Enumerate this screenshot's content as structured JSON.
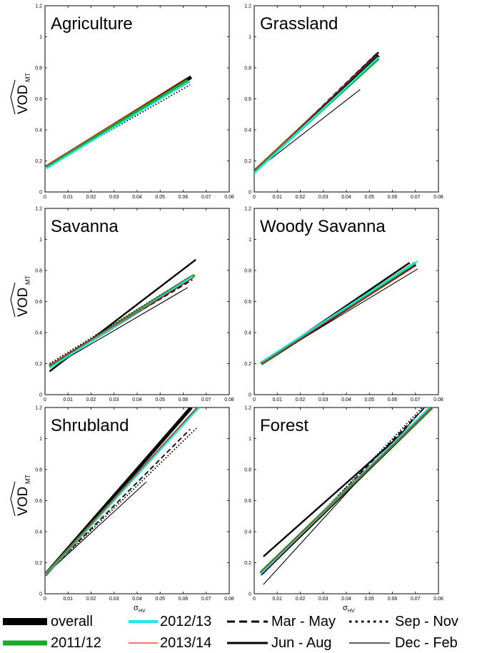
{
  "chart_data": [
    {
      "type": "line",
      "title": "Agriculture",
      "ylabel": "VOD",
      "ylabel_sub": "MT",
      "xlabel": "",
      "xlim": [
        0,
        0.08
      ],
      "ylim": [
        0,
        1.2
      ],
      "xticks": [
        "0",
        "0.01",
        "0.02",
        "0.03",
        "0.04",
        "0.05",
        "0.06",
        "0.07",
        "0.08"
      ],
      "yticks": [
        "0",
        "0.2",
        "0.4",
        "0.6",
        "0.8",
        "1",
        "1.2"
      ],
      "series": [
        {
          "name": "overall",
          "x": [
            0.0005,
            0.0635
          ],
          "y": [
            0.16,
            0.74
          ]
        },
        {
          "name": "2011/12",
          "x": [
            0.0005,
            0.062
          ],
          "y": [
            0.16,
            0.72
          ]
        },
        {
          "name": "2012/13",
          "x": [
            0.0005,
            0.0625
          ],
          "y": [
            0.15,
            0.71
          ]
        },
        {
          "name": "2013/14",
          "x": [
            0.0005,
            0.061
          ],
          "y": [
            0.17,
            0.73
          ]
        },
        {
          "name": "Mar - May",
          "x": [
            0.0005,
            0.062
          ],
          "y": [
            0.16,
            0.72
          ]
        },
        {
          "name": "Jun - Aug",
          "x": [
            0.0005,
            0.063
          ],
          "y": [
            0.16,
            0.73
          ]
        },
        {
          "name": "Sep - Nov",
          "x": [
            0.0005,
            0.063
          ],
          "y": [
            0.16,
            0.69
          ]
        },
        {
          "name": "Dec - Feb",
          "x": [
            0.0005,
            0.063
          ],
          "y": [
            0.16,
            0.71
          ]
        }
      ]
    },
    {
      "type": "line",
      "title": "Grassland",
      "ylabel": "",
      "ylabel_sub": "",
      "xlabel": "",
      "xlim": [
        0,
        0.08
      ],
      "ylim": [
        0,
        1.2
      ],
      "xticks": [
        "0",
        "0.01",
        "0.02",
        "0.03",
        "0.04",
        "0.05",
        "0.06",
        "0.07",
        "0.08"
      ],
      "yticks": [
        "0",
        "0.2",
        "0.4",
        "0.6",
        "0.8",
        "1",
        "1.2"
      ],
      "series": [
        {
          "name": "overall",
          "x": [
            0.0,
            0.054
          ],
          "y": [
            0.13,
            0.88
          ]
        },
        {
          "name": "2011/12",
          "x": [
            0.0,
            0.054
          ],
          "y": [
            0.13,
            0.86
          ]
        },
        {
          "name": "2012/13",
          "x": [
            0.0,
            0.054
          ],
          "y": [
            0.12,
            0.87
          ]
        },
        {
          "name": "2013/14",
          "x": [
            0.0,
            0.053
          ],
          "y": [
            0.14,
            0.88
          ]
        },
        {
          "name": "Mar - May",
          "x": [
            0.0,
            0.053
          ],
          "y": [
            0.13,
            0.89
          ]
        },
        {
          "name": "Jun - Aug",
          "x": [
            0.0,
            0.054
          ],
          "y": [
            0.12,
            0.9
          ]
        },
        {
          "name": "Sep - Nov",
          "x": [
            0.0,
            0.053
          ],
          "y": [
            0.13,
            0.87
          ]
        },
        {
          "name": "Dec - Feb",
          "x": [
            0.0,
            0.046
          ],
          "y": [
            0.13,
            0.66
          ]
        }
      ]
    },
    {
      "type": "line",
      "title": "Savanna",
      "ylabel": "VOD",
      "ylabel_sub": "MT",
      "xlabel": "",
      "xlim": [
        0,
        0.08
      ],
      "ylim": [
        0,
        1.2
      ],
      "xticks": [
        "0",
        "0.01",
        "0.02",
        "0.03",
        "0.04",
        "0.05",
        "0.06",
        "0.07",
        "0.08"
      ],
      "yticks": [
        "0",
        "0.2",
        "0.4",
        "0.6",
        "0.8",
        "1",
        "1.2"
      ],
      "series": [
        {
          "name": "overall",
          "x": [
            0.002,
            0.064
          ],
          "y": [
            0.18,
            0.76
          ]
        },
        {
          "name": "2011/12",
          "x": [
            0.002,
            0.065
          ],
          "y": [
            0.18,
            0.77
          ]
        },
        {
          "name": "2012/13",
          "x": [
            0.002,
            0.064
          ],
          "y": [
            0.17,
            0.76
          ]
        },
        {
          "name": "2013/14",
          "x": [
            0.002,
            0.064
          ],
          "y": [
            0.19,
            0.75
          ]
        },
        {
          "name": "Mar - May",
          "x": [
            0.002,
            0.064
          ],
          "y": [
            0.19,
            0.74
          ]
        },
        {
          "name": "Jun - Aug",
          "x": [
            0.002,
            0.0655
          ],
          "y": [
            0.15,
            0.87
          ]
        },
        {
          "name": "Sep - Nov",
          "x": [
            0.002,
            0.062
          ],
          "y": [
            0.2,
            0.75
          ]
        },
        {
          "name": "Dec - Feb",
          "x": [
            0.002,
            0.062
          ],
          "y": [
            0.17,
            0.69
          ]
        }
      ]
    },
    {
      "type": "line",
      "title": "Woody Savanna",
      "ylabel": "",
      "ylabel_sub": "",
      "xlabel": "",
      "xlim": [
        0,
        0.08
      ],
      "ylim": [
        0,
        1.2
      ],
      "xticks": [
        "0",
        "0.01",
        "0.02",
        "0.03",
        "0.04",
        "0.05",
        "0.06",
        "0.07",
        "0.08"
      ],
      "yticks": [
        "0",
        "0.2",
        "0.4",
        "0.6",
        "0.8",
        "1",
        "1.2"
      ],
      "series": [
        {
          "name": "overall",
          "x": [
            0.003,
            0.07
          ],
          "y": [
            0.2,
            0.84
          ]
        },
        {
          "name": "2011/12",
          "x": [
            0.003,
            0.07
          ],
          "y": [
            0.2,
            0.85
          ]
        },
        {
          "name": "2012/13",
          "x": [
            0.003,
            0.071
          ],
          "y": [
            0.21,
            0.86
          ]
        },
        {
          "name": "2013/14",
          "x": [
            0.003,
            0.07
          ],
          "y": [
            0.2,
            0.83
          ]
        },
        {
          "name": "Mar - May",
          "x": [
            0.003,
            0.07
          ],
          "y": [
            0.2,
            0.83
          ]
        },
        {
          "name": "Jun - Aug",
          "x": [
            0.003,
            0.0675
          ],
          "y": [
            0.2,
            0.85
          ]
        },
        {
          "name": "Sep - Nov",
          "x": [
            0.003,
            0.07
          ],
          "y": [
            0.2,
            0.84
          ]
        },
        {
          "name": "Dec - Feb",
          "x": [
            0.003,
            0.071
          ],
          "y": [
            0.2,
            0.81
          ]
        }
      ]
    },
    {
      "type": "line",
      "title": "Shrubland",
      "ylabel": "VOD",
      "ylabel_sub": "MT",
      "xlabel": "σ",
      "xlabel_sub": "HV",
      "xlim": [
        0,
        0.08
      ],
      "ylim": [
        0,
        1.2
      ],
      "xticks": [
        "0",
        "0.01",
        "0.02",
        "0.03",
        "0.04",
        "0.05",
        "0.06",
        "0.07",
        "0.08"
      ],
      "yticks": [
        "0",
        "0.2",
        "0.4",
        "0.6",
        "0.8",
        "1",
        "1.2"
      ],
      "series": [
        {
          "name": "overall",
          "x": [
            0.0,
            0.0635
          ],
          "y": [
            0.12,
            1.2
          ]
        },
        {
          "name": "2011/12",
          "x": [
            0.0,
            0.0665
          ],
          "y": [
            0.12,
            1.2
          ]
        },
        {
          "name": "2012/13",
          "x": [
            0.0,
            0.067
          ],
          "y": [
            0.12,
            1.2
          ]
        },
        {
          "name": "2013/14",
          "x": [
            0.0,
            0.066
          ],
          "y": [
            0.12,
            1.2
          ]
        },
        {
          "name": "Mar - May",
          "x": [
            0.0,
            0.063
          ],
          "y": [
            0.12,
            1.06
          ]
        },
        {
          "name": "Jun - Aug",
          "x": [
            0.0,
            0.063
          ],
          "y": [
            0.12,
            1.2
          ]
        },
        {
          "name": "Sep - Nov",
          "x": [
            0.0,
            0.066
          ],
          "y": [
            0.12,
            1.07
          ]
        },
        {
          "name": "Dec - Feb",
          "x": [
            0.0,
            0.044
          ],
          "y": [
            0.12,
            0.72
          ]
        }
      ]
    },
    {
      "type": "line",
      "title": "Forest",
      "ylabel": "",
      "ylabel_sub": "",
      "xlabel": "σ",
      "xlabel_sub": "HV",
      "xlim": [
        0,
        0.08
      ],
      "ylim": [
        0,
        1.2
      ],
      "xticks": [
        "0",
        "0.01",
        "0.02",
        "0.03",
        "0.04",
        "0.05",
        "0.06",
        "0.07",
        "0.08"
      ],
      "yticks": [
        "0",
        "0.2",
        "0.4",
        "0.6",
        "0.8",
        "1",
        "1.2"
      ],
      "series": [
        {
          "name": "overall",
          "x": [
            0.003,
            0.077
          ],
          "y": [
            0.13,
            1.2
          ]
        },
        {
          "name": "2011/12",
          "x": [
            0.003,
            0.077
          ],
          "y": [
            0.14,
            1.2
          ]
        },
        {
          "name": "2012/13",
          "x": [
            0.003,
            0.076
          ],
          "y": [
            0.13,
            1.2
          ]
        },
        {
          "name": "2013/14",
          "x": [
            0.003,
            0.077
          ],
          "y": [
            0.14,
            1.2
          ]
        },
        {
          "name": "Mar - May",
          "x": [
            0.003,
            0.074
          ],
          "y": [
            0.12,
            1.2
          ]
        },
        {
          "name": "Jun - Aug",
          "x": [
            0.004,
            0.077
          ],
          "y": [
            0.24,
            1.2
          ]
        },
        {
          "name": "Sep - Nov",
          "x": [
            0.004,
            0.073
          ],
          "y": [
            0.13,
            1.2
          ]
        },
        {
          "name": "Dec - Feb",
          "x": [
            0.004,
            0.074
          ],
          "y": [
            0.06,
            1.2
          ]
        }
      ]
    }
  ],
  "legend": {
    "placement": "bottom",
    "items": [
      {
        "label": "overall",
        "color": "#000000",
        "style": "solid",
        "weight": "thick"
      },
      {
        "label": "2011/12",
        "color": "#1aaa2a",
        "style": "solid",
        "weight": "thick"
      },
      {
        "label": "2012/13",
        "color": "#21e8f0",
        "style": "solid",
        "weight": "medium"
      },
      {
        "label": "2013/14",
        "color": "#e3231f",
        "style": "solid",
        "weight": "thin"
      },
      {
        "label": "Mar - May",
        "color": "#000000",
        "style": "dashed",
        "weight": "medium"
      },
      {
        "label": "Jun - Aug",
        "color": "#000000",
        "style": "solid",
        "weight": "medium"
      },
      {
        "label": "Sep - Nov",
        "color": "#000000",
        "style": "dotted",
        "weight": "medium"
      },
      {
        "label": "Dec - Feb",
        "color": "#000000",
        "style": "solid",
        "weight": "thin"
      }
    ]
  }
}
